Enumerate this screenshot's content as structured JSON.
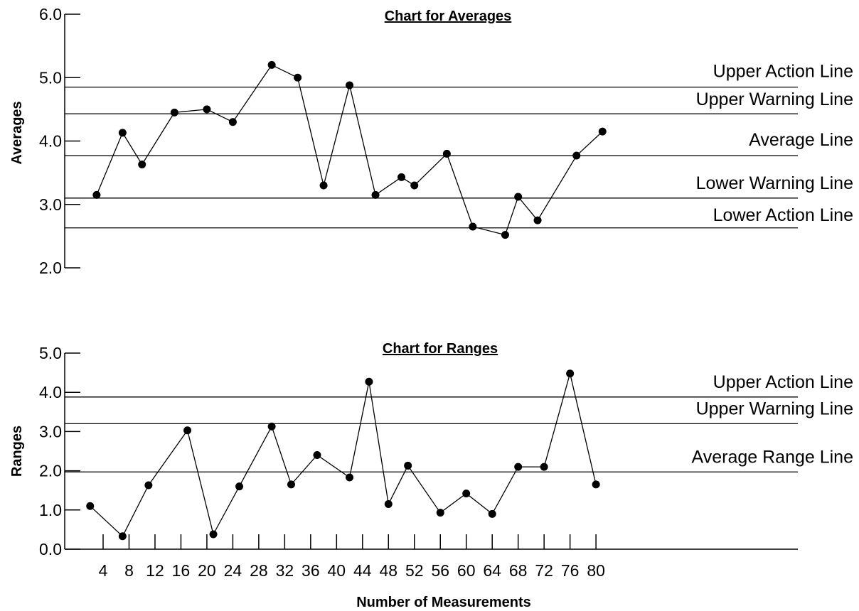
{
  "chart_data": [
    {
      "id": "averages",
      "type": "line",
      "title": "Chart for Averages",
      "ylabel": "Averages",
      "ylim": [
        2.0,
        6.0
      ],
      "yticks": [
        "2.0",
        "3.0",
        "4.0",
        "5.0",
        "6.0"
      ],
      "grid": false,
      "series": [
        {
          "x": [
            3,
            7,
            10,
            15,
            20,
            24,
            30,
            34,
            38,
            42,
            46,
            50,
            52,
            57,
            61,
            66,
            68,
            71,
            77,
            81
          ],
          "y": [
            3.15,
            4.13,
            3.63,
            4.45,
            4.5,
            4.3,
            5.2,
            5.0,
            3.3,
            4.88,
            3.15,
            3.43,
            3.3,
            3.8,
            2.65,
            2.52,
            3.12,
            2.75,
            3.77,
            4.15
          ]
        }
      ],
      "reference_lines": [
        {
          "label": "Upper Action Line",
          "y": 4.85
        },
        {
          "label": "Upper Warning Line",
          "y": 4.43
        },
        {
          "label": "Average Line",
          "y": 3.77
        },
        {
          "label": "Lower Warning Line",
          "y": 3.1
        },
        {
          "label": "Lower Action Line",
          "y": 2.63
        }
      ]
    },
    {
      "id": "ranges",
      "type": "line",
      "title": "Chart for Ranges",
      "ylabel": "Ranges",
      "xlabel": "Number of Measurements",
      "ylim": [
        0.0,
        5.0
      ],
      "yticks": [
        "0.0",
        "1.0",
        "2.0",
        "3.0",
        "4.0",
        "5.0"
      ],
      "xticks": [
        "4",
        "8",
        "12",
        "16",
        "20",
        "24",
        "28",
        "32",
        "36",
        "40",
        "44",
        "48",
        "52",
        "56",
        "60",
        "64",
        "68",
        "72",
        "76",
        "80"
      ],
      "grid": false,
      "series": [
        {
          "x": [
            2,
            7,
            11,
            17,
            21,
            25,
            30,
            33,
            37,
            42,
            45,
            48,
            51,
            56,
            60,
            64,
            68,
            72,
            76,
            80
          ],
          "y": [
            1.1,
            0.33,
            1.63,
            3.03,
            0.38,
            1.6,
            3.13,
            1.65,
            2.4,
            1.83,
            4.27,
            1.15,
            2.13,
            0.93,
            1.42,
            0.9,
            2.1,
            2.1,
            4.48,
            1.65
          ]
        }
      ],
      "reference_lines": [
        {
          "label": "Upper Action Line",
          "y": 3.88
        },
        {
          "label": "Upper Warning Line",
          "y": 3.2
        },
        {
          "label": "Average Range Line",
          "y": 1.97
        }
      ]
    }
  ]
}
